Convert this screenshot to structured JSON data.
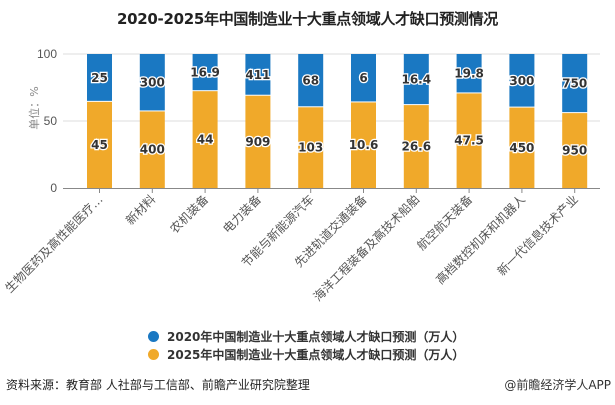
{
  "title": "2020-2025年中国制造业十大重点领域人才缺口预测情况",
  "chart_data": {
    "type": "bar",
    "stacked": true,
    "normalized_percent": true,
    "title": "2020-2025年中国制造业十大重点领域人才缺口预测情况",
    "xlabel": "",
    "ylabel": "单位：%",
    "ylim": [
      0,
      100
    ],
    "yticks": [
      0,
      50,
      100
    ],
    "grid": true,
    "legend_position": "bottom",
    "categories": [
      "生物医药及高性能医疗…",
      "新材料",
      "农机装备",
      "电力装备",
      "节能与新能源汽车",
      "先进轨道交通装备",
      "海洋工程装备及高技术船舶",
      "航空航天装备",
      "高档数控机床和机器人",
      "新一代信息技术产业"
    ],
    "series": [
      {
        "name": "2020年中国制造业十大重点领域人才缺口预测（万人）",
        "color": "#1a78c2",
        "labels": [
          "25",
          "300",
          "16.9",
          "411",
          "68",
          "6",
          "16.4",
          "19.8",
          "300",
          "750"
        ],
        "values": [
          25,
          300,
          16.9,
          411,
          68,
          6,
          16.4,
          19.8,
          300,
          750
        ]
      },
      {
        "name": "2025年中国制造业十大重点领域人才缺口预测（万人）",
        "color": "#f0a92a",
        "labels": [
          "45",
          "400",
          "44",
          "909",
          "103",
          "10.6",
          "26.6",
          "47.5",
          "450",
          "950"
        ],
        "values": [
          45,
          400,
          44,
          909,
          103,
          10.6,
          26.6,
          47.5,
          450,
          950
        ]
      }
    ]
  },
  "legend": {
    "items": [
      {
        "label": "2020年中国制造业十大重点领域人才缺口预测（万人）",
        "color": "#1a78c2"
      },
      {
        "label": "2025年中国制造业十大重点领域人才缺口预测（万人）",
        "color": "#f0a92a"
      }
    ]
  },
  "footer": {
    "source": "资料来源：教育部 人社部与工信部、前瞻产业研究院整理",
    "credit": "@前瞻经济学人APP"
  }
}
